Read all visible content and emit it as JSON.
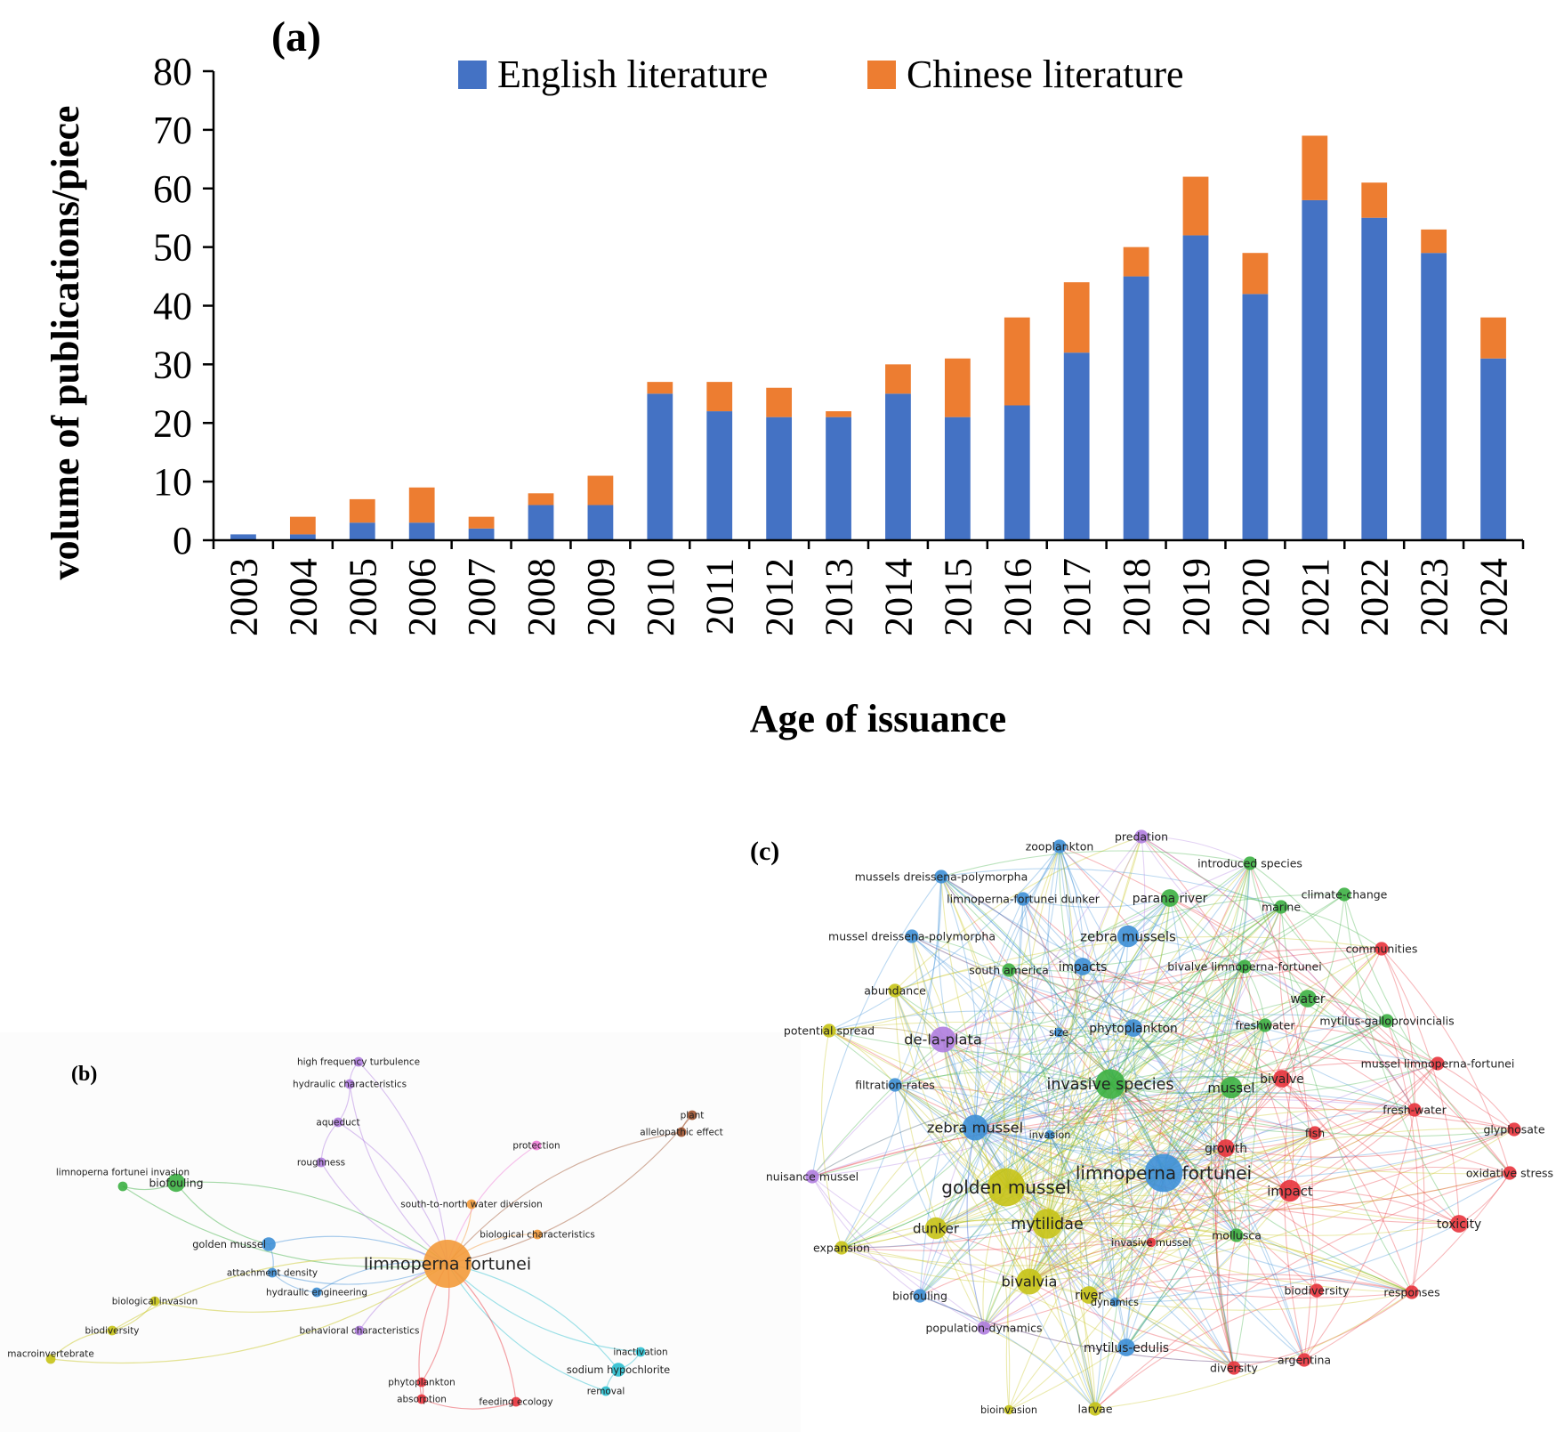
{
  "chart_data": [
    {
      "panel": "(a)",
      "type": "bar",
      "stacked": true,
      "categories": [
        "2003",
        "2004",
        "2005",
        "2006",
        "2007",
        "2008",
        "2009",
        "2010",
        "2011",
        "2012",
        "2013",
        "2014",
        "2015",
        "2016",
        "2017",
        "2018",
        "2019",
        "2020",
        "2021",
        "2022",
        "2023",
        "2024"
      ],
      "series": [
        {
          "name": "English literature",
          "color": "#4472c4",
          "values": [
            1,
            1,
            3,
            3,
            2,
            6,
            6,
            25,
            22,
            21,
            21,
            25,
            21,
            23,
            32,
            45,
            52,
            42,
            58,
            55,
            49,
            31
          ]
        },
        {
          "name": "Chinese literature",
          "color": "#ed7d31",
          "values": [
            0,
            3,
            4,
            6,
            2,
            2,
            5,
            2,
            5,
            5,
            1,
            5,
            10,
            15,
            12,
            5,
            10,
            7,
            11,
            6,
            4,
            7
          ]
        }
      ],
      "ylabel": "volume of publications/piece",
      "xlabel": "Age of issuance",
      "ylim": [
        0,
        80
      ],
      "yticks": [
        "0",
        "10",
        "20",
        "30",
        "40",
        "50",
        "60",
        "70",
        "80"
      ],
      "legend": "top"
    },
    {
      "panel": "(b)",
      "type": "network",
      "nodes": [
        {
          "label": "limnoperna fortunei",
          "cluster": "orange",
          "weight": 10
        },
        {
          "label": "biofouling",
          "cluster": "green",
          "weight": 3
        },
        {
          "label": "limnoperna fortunei invasion",
          "cluster": "green",
          "weight": 1
        },
        {
          "label": "golden mussel",
          "cluster": "blue",
          "weight": 2
        },
        {
          "label": "attachment density",
          "cluster": "blue",
          "weight": 1
        },
        {
          "label": "hydraulic engineering",
          "cluster": "blue",
          "weight": 1
        },
        {
          "label": "biological invasion",
          "cluster": "yellow",
          "weight": 1
        },
        {
          "label": "biodiversity",
          "cluster": "yellow",
          "weight": 1
        },
        {
          "label": "macroinvertebrate",
          "cluster": "yellow",
          "weight": 1
        },
        {
          "label": "high frequency turbulence",
          "cluster": "purple",
          "weight": 1
        },
        {
          "label": "hydraulic characteristics",
          "cluster": "purple",
          "weight": 1
        },
        {
          "label": "aqueduct",
          "cluster": "purple",
          "weight": 1
        },
        {
          "label": "roughness",
          "cluster": "purple",
          "weight": 1
        },
        {
          "label": "behavioral characteristics",
          "cluster": "purple",
          "weight": 1
        },
        {
          "label": "protection",
          "cluster": "pink",
          "weight": 1
        },
        {
          "label": "plant",
          "cluster": "brown",
          "weight": 1
        },
        {
          "label": "allelopathic effect",
          "cluster": "brown",
          "weight": 1
        },
        {
          "label": "south-to-north water diversion",
          "cluster": "orange",
          "weight": 1
        },
        {
          "label": "biological characteristics",
          "cluster": "orange",
          "weight": 1
        },
        {
          "label": "inactivation",
          "cluster": "cyan",
          "weight": 1
        },
        {
          "label": "sodium hypochlorite",
          "cluster": "cyan",
          "weight": 2
        },
        {
          "label": "removal",
          "cluster": "cyan",
          "weight": 1
        },
        {
          "label": "phytoplankton",
          "cluster": "red",
          "weight": 1
        },
        {
          "label": "absorption",
          "cluster": "red",
          "weight": 1
        },
        {
          "label": "feeding ecology",
          "cluster": "red",
          "weight": 1
        }
      ]
    },
    {
      "panel": "(c)",
      "type": "network",
      "nodes": [
        {
          "label": "limnoperna fortunei",
          "cluster": "blue",
          "weight": 8
        },
        {
          "label": "golden mussel",
          "cluster": "yellow",
          "weight": 8
        },
        {
          "label": "mytilidae",
          "cluster": "yellow",
          "weight": 6
        },
        {
          "label": "bivalvia",
          "cluster": "yellow",
          "weight": 5
        },
        {
          "label": "invasive species",
          "cluster": "green",
          "weight": 6
        },
        {
          "label": "zebra mussel",
          "cluster": "blue",
          "weight": 5
        },
        {
          "label": "de-la-plata",
          "cluster": "purple",
          "weight": 5
        },
        {
          "label": "zebra mussels",
          "cluster": "blue",
          "weight": 4
        },
        {
          "label": "mussel",
          "cluster": "green",
          "weight": 4
        },
        {
          "label": "impact",
          "cluster": "red",
          "weight": 4
        },
        {
          "label": "dunker",
          "cluster": "yellow",
          "weight": 4
        },
        {
          "label": "river",
          "cluster": "yellow",
          "weight": 3
        },
        {
          "label": "parana river",
          "cluster": "green",
          "weight": 3
        },
        {
          "label": "impacts",
          "cluster": "blue",
          "weight": 3
        },
        {
          "label": "phytoplankton",
          "cluster": "blue",
          "weight": 3
        },
        {
          "label": "water",
          "cluster": "green",
          "weight": 3
        },
        {
          "label": "growth",
          "cluster": "red",
          "weight": 3
        },
        {
          "label": "toxicity",
          "cluster": "red",
          "weight": 3
        },
        {
          "label": "bivalve",
          "cluster": "red",
          "weight": 3
        },
        {
          "label": "mytilus-edulis",
          "cluster": "blue",
          "weight": 3
        },
        {
          "label": "fish",
          "cluster": "red",
          "weight": 2
        },
        {
          "label": "biodiversity",
          "cluster": "red",
          "weight": 2
        },
        {
          "label": "diversity",
          "cluster": "red",
          "weight": 2
        },
        {
          "label": "argentina",
          "cluster": "red",
          "weight": 2
        },
        {
          "label": "responses",
          "cluster": "red",
          "weight": 2
        },
        {
          "label": "communities",
          "cluster": "red",
          "weight": 2
        },
        {
          "label": "fresh-water",
          "cluster": "red",
          "weight": 2
        },
        {
          "label": "mussel limnoperna-fortunei",
          "cluster": "red",
          "weight": 2
        },
        {
          "label": "glyphosate",
          "cluster": "red",
          "weight": 2
        },
        {
          "label": "oxidative stress",
          "cluster": "red",
          "weight": 2
        },
        {
          "label": "mollusca",
          "cluster": "green",
          "weight": 2
        },
        {
          "label": "invasive mussel",
          "cluster": "red",
          "weight": 1
        },
        {
          "label": "invasion",
          "cluster": "blue",
          "weight": 1
        },
        {
          "label": "dynamics",
          "cluster": "blue",
          "weight": 1
        },
        {
          "label": "larvae",
          "cluster": "yellow",
          "weight": 2
        },
        {
          "label": "bioinvasion",
          "cluster": "yellow",
          "weight": 1
        },
        {
          "label": "population-dynamics",
          "cluster": "purple",
          "weight": 2
        },
        {
          "label": "biofouling",
          "cluster": "blue",
          "weight": 2
        },
        {
          "label": "expansion",
          "cluster": "yellow",
          "weight": 2
        },
        {
          "label": "nuisance mussel",
          "cluster": "purple",
          "weight": 2
        },
        {
          "label": "filtration-rates",
          "cluster": "blue",
          "weight": 2
        },
        {
          "label": "potential spread",
          "cluster": "yellow",
          "weight": 2
        },
        {
          "label": "abundance",
          "cluster": "yellow",
          "weight": 2
        },
        {
          "label": "mussel dreissena-polymorpha",
          "cluster": "blue",
          "weight": 2
        },
        {
          "label": "mussels dreissena-polymorpha",
          "cluster": "blue",
          "weight": 2
        },
        {
          "label": "limnoperna-fortunei dunker",
          "cluster": "blue",
          "weight": 2
        },
        {
          "label": "zooplankton",
          "cluster": "blue",
          "weight": 2
        },
        {
          "label": "predation",
          "cluster": "purple",
          "weight": 2
        },
        {
          "label": "introduced species",
          "cluster": "green",
          "weight": 2
        },
        {
          "label": "climate-change",
          "cluster": "green",
          "weight": 2
        },
        {
          "label": "marine",
          "cluster": "green",
          "weight": 2
        },
        {
          "label": "south america",
          "cluster": "green",
          "weight": 2
        },
        {
          "label": "bivalve limnoperna-fortunei",
          "cluster": "green",
          "weight": 2
        },
        {
          "label": "size",
          "cluster": "blue",
          "weight": 1
        },
        {
          "label": "freshwater",
          "cluster": "green",
          "weight": 2
        },
        {
          "label": "mytilus-galloprovincialis",
          "cluster": "green",
          "weight": 2
        }
      ]
    }
  ],
  "labels": {
    "panel_a": "(a)",
    "panel_b": "(b)",
    "panel_c": "(c)"
  },
  "colors": {
    "orange": "#f39a3a",
    "green": "#3cb043",
    "blue": "#3d8fd6",
    "yellow": "#c6c316",
    "purple": "#b07ddf",
    "pink": "#f07ad8",
    "brown": "#a0522d",
    "cyan": "#2bbfcf",
    "red": "#e8333c"
  }
}
